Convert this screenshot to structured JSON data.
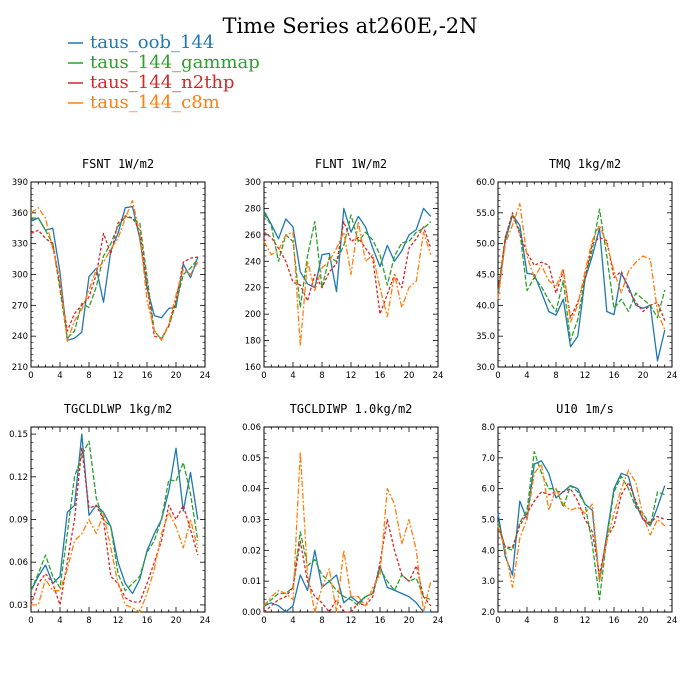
{
  "title": "Time Series at260E,-2N",
  "legend": [
    {
      "name": "taus_oob_144",
      "color": "#1f77b4"
    },
    {
      "name": "taus_144_gammap",
      "color": "#2ca02c"
    },
    {
      "name": "taus_144_n2thp",
      "color": "#d62728"
    },
    {
      "name": "taus_144_c8m",
      "color": "#ff7f0e"
    }
  ],
  "chart_data": [
    {
      "type": "line",
      "title": "FSNT  1W/m2",
      "x": [
        0,
        1,
        2,
        3,
        4,
        5,
        6,
        7,
        8,
        9,
        10,
        11,
        12,
        13,
        14,
        15,
        16,
        17,
        18,
        19,
        20,
        21,
        22,
        23
      ],
      "xticks": [
        0,
        4,
        8,
        12,
        16,
        20,
        24
      ],
      "xlim": [
        0,
        24
      ],
      "ylim": [
        210,
        390
      ],
      "yticks": [
        210,
        240,
        270,
        300,
        330,
        360,
        390
      ],
      "grid": false,
      "series": [
        {
          "name": "taus_oob_144",
          "values": [
            352,
            355,
            343,
            345,
            302,
            236,
            238,
            244,
            298,
            306,
            273,
            323,
            340,
            365,
            366,
            335,
            287,
            260,
            258,
            267,
            268,
            310,
            297,
            317
          ]
        },
        {
          "name": "taus_144_gammap",
          "values": [
            355,
            355,
            343,
            330,
            285,
            238,
            245,
            272,
            268,
            288,
            318,
            330,
            347,
            356,
            355,
            350,
            298,
            245,
            237,
            250,
            272,
            300,
            306,
            315
          ]
        },
        {
          "name": "taus_144_n2thp",
          "values": [
            340,
            343,
            335,
            330,
            290,
            245,
            262,
            270,
            278,
            300,
            340,
            320,
            350,
            357,
            355,
            343,
            290,
            240,
            238,
            250,
            275,
            312,
            316,
            317
          ]
        },
        {
          "name": "taus_144_c8m",
          "values": [
            360,
            365,
            355,
            325,
            295,
            235,
            255,
            266,
            285,
            305,
            312,
            325,
            335,
            355,
            372,
            340,
            275,
            246,
            236,
            252,
            280,
            305,
            300,
            312
          ]
        }
      ]
    },
    {
      "type": "line",
      "title": "FLNT  1W/m2",
      "x": [
        0,
        1,
        2,
        3,
        4,
        5,
        6,
        7,
        8,
        9,
        10,
        11,
        12,
        13,
        14,
        15,
        16,
        17,
        18,
        19,
        20,
        21,
        22,
        23
      ],
      "xticks": [
        0,
        4,
        8,
        12,
        16,
        20,
        24
      ],
      "xlim": [
        0,
        24
      ],
      "ylim": [
        160,
        300
      ],
      "yticks": [
        160,
        180,
        200,
        220,
        240,
        260,
        280,
        300
      ],
      "grid": false,
      "series": [
        {
          "name": "taus_oob_144",
          "values": [
            278,
            268,
            257,
            272,
            266,
            232,
            223,
            220,
            245,
            246,
            217,
            280,
            262,
            274,
            266,
            250,
            236,
            252,
            240,
            248,
            260,
            264,
            280,
            274
          ]
        },
        {
          "name": "taus_144_gammap",
          "values": [
            276,
            267,
            240,
            260,
            255,
            205,
            244,
            270,
            220,
            243,
            240,
            252,
            275,
            255,
            262,
            256,
            245,
            222,
            244,
            254,
            255,
            262,
            265,
            270
          ]
        },
        {
          "name": "taus_144_n2thp",
          "values": [
            262,
            258,
            250,
            240,
            224,
            222,
            210,
            230,
            220,
            232,
            238,
            270,
            255,
            258,
            250,
            242,
            200,
            215,
            230,
            220,
            250,
            257,
            266,
            250
          ]
        },
        {
          "name": "taus_144_c8m",
          "values": [
            255,
            245,
            248,
            260,
            262,
            176,
            240,
            218,
            235,
            240,
            250,
            262,
            230,
            270,
            240,
            245,
            220,
            198,
            230,
            205,
            220,
            225,
            262,
            245
          ]
        }
      ]
    },
    {
      "type": "line",
      "title": "TMQ  1kg/m2",
      "x": [
        0,
        1,
        2,
        3,
        4,
        5,
        6,
        7,
        8,
        9,
        10,
        11,
        12,
        13,
        14,
        15,
        16,
        17,
        18,
        19,
        20,
        21,
        22,
        23
      ],
      "xticks": [
        0,
        4,
        8,
        12,
        16,
        20,
        24
      ],
      "xlim": [
        0,
        24
      ],
      "ylim": [
        30.0,
        60.0
      ],
      "yticks": [
        30.0,
        35.0,
        40.0,
        45.0,
        50.0,
        55.0,
        60.0
      ],
      "grid": false,
      "series": [
        {
          "name": "taus_oob_144",
          "values": [
            41.5,
            50.5,
            54.6,
            53.0,
            45.2,
            45.0,
            42.1,
            39.0,
            38.4,
            41.0,
            33.3,
            35.0,
            44.2,
            48.0,
            52.5,
            39.0,
            38.5,
            45.2,
            43.0,
            40.0,
            39.5,
            40.0,
            31.0,
            36.0
          ]
        },
        {
          "name": "taus_144_gammap",
          "values": [
            42.1,
            51.0,
            54.6,
            52.0,
            42.4,
            44.5,
            43.0,
            40.8,
            39.0,
            44.0,
            34.3,
            37.7,
            44.5,
            49.0,
            55.6,
            48.0,
            39.5,
            41.0,
            39.0,
            42.0,
            41.0,
            40.0,
            38.0,
            42.5
          ]
        },
        {
          "name": "taus_144_n2thp",
          "values": [
            42.0,
            51.0,
            55.0,
            51.5,
            48.5,
            46.5,
            47.0,
            46.5,
            42.0,
            45.5,
            38.0,
            40.5,
            44.5,
            50.0,
            51.0,
            50.5,
            44.5,
            45.5,
            42.5,
            40.5,
            39.0,
            40.0,
            40.5,
            37.5
          ]
        },
        {
          "name": "taus_144_c8m",
          "values": [
            41.0,
            50.0,
            53.0,
            56.5,
            48.0,
            44.5,
            46.5,
            44.0,
            43.0,
            46.0,
            37.3,
            40.0,
            45.5,
            50.5,
            53.0,
            50.0,
            45.5,
            42.0,
            45.5,
            47.0,
            48.0,
            47.5,
            39.0,
            36.0
          ]
        }
      ]
    },
    {
      "type": "line",
      "title": "TGCLDLWP  1kg/m2",
      "x": [
        0,
        1,
        2,
        3,
        4,
        5,
        6,
        7,
        8,
        9,
        10,
        11,
        12,
        13,
        14,
        15,
        16,
        17,
        18,
        19,
        20,
        21,
        22,
        23
      ],
      "xticks": [
        0,
        4,
        8,
        12,
        16,
        20,
        24
      ],
      "xlim": [
        0,
        24
      ],
      "ylim": [
        0.025,
        0.155
      ],
      "yticks": [
        0.03,
        0.06,
        0.09,
        0.12,
        0.15
      ],
      "grid": false,
      "series": [
        {
          "name": "taus_oob_144",
          "values": [
            0.04,
            0.05,
            0.058,
            0.045,
            0.05,
            0.095,
            0.1,
            0.15,
            0.093,
            0.1,
            0.095,
            0.085,
            0.06,
            0.045,
            0.038,
            0.048,
            0.068,
            0.08,
            0.09,
            0.11,
            0.14,
            0.096,
            0.123,
            0.09
          ]
        },
        {
          "name": "taus_144_gammap",
          "values": [
            0.04,
            0.052,
            0.065,
            0.05,
            0.042,
            0.08,
            0.12,
            0.135,
            0.145,
            0.105,
            0.09,
            0.085,
            0.052,
            0.04,
            0.045,
            0.05,
            0.067,
            0.075,
            0.09,
            0.118,
            0.117,
            0.13,
            0.108,
            0.075
          ]
        },
        {
          "name": "taus_144_n2thp",
          "values": [
            0.03,
            0.045,
            0.052,
            0.045,
            0.03,
            0.06,
            0.09,
            0.14,
            0.098,
            0.1,
            0.09,
            0.05,
            0.045,
            0.035,
            0.032,
            0.032,
            0.045,
            0.06,
            0.075,
            0.1,
            0.09,
            0.1,
            0.083,
            0.065
          ]
        },
        {
          "name": "taus_144_c8m",
          "values": [
            0.03,
            0.03,
            0.048,
            0.04,
            0.04,
            0.055,
            0.075,
            0.08,
            0.09,
            0.08,
            0.094,
            0.07,
            0.045,
            0.03,
            0.028,
            0.025,
            0.038,
            0.055,
            0.08,
            0.095,
            0.085,
            0.07,
            0.09,
            0.07
          ]
        }
      ]
    },
    {
      "type": "line",
      "title": "TGCLDIWP  1.0kg/m2",
      "x": [
        0,
        1,
        2,
        3,
        4,
        5,
        6,
        7,
        8,
        9,
        10,
        11,
        12,
        13,
        14,
        15,
        16,
        17,
        18,
        19,
        20,
        21,
        22,
        23
      ],
      "xticks": [
        0,
        4,
        8,
        12,
        16,
        20,
        24
      ],
      "xlim": [
        0,
        24
      ],
      "ylim": [
        0.0,
        0.06
      ],
      "yticks": [
        0.0,
        0.01,
        0.02,
        0.03,
        0.04,
        0.05,
        0.06
      ],
      "grid": false,
      "series": [
        {
          "name": "taus_oob_144",
          "values": [
            0.002,
            0.003,
            0.002,
            0.0,
            0.002,
            0.012,
            0.007,
            0.02,
            0.008,
            0.01,
            0.012,
            0.003,
            0.005,
            0.003,
            0.005,
            0.006,
            0.015,
            0.008,
            0.007,
            0.006,
            0.005,
            0.003,
            0.0,
            0.0
          ]
        },
        {
          "name": "taus_144_gammap",
          "values": [
            0.002,
            0.004,
            0.006,
            0.006,
            0.008,
            0.026,
            0.015,
            0.017,
            0.012,
            0.01,
            0.007,
            0.005,
            0.004,
            0.002,
            0.005,
            0.006,
            0.014,
            0.01,
            0.007,
            0.012,
            0.01,
            0.011,
            0.005,
            0.004
          ]
        },
        {
          "name": "taus_144_n2thp",
          "values": [
            0.0,
            0.002,
            0.004,
            0.005,
            0.008,
            0.023,
            0.01,
            0.005,
            0.003,
            0.0,
            0.004,
            0.0,
            0.0,
            0.003,
            0.002,
            0.005,
            0.016,
            0.03,
            0.02,
            0.012,
            0.01,
            0.015,
            0.005,
            0.002
          ]
        },
        {
          "name": "taus_144_c8m",
          "values": [
            0.002,
            0.005,
            0.007,
            0.006,
            0.004,
            0.052,
            0.012,
            0.0,
            0.008,
            0.014,
            0.0,
            0.02,
            0.005,
            0.005,
            0.002,
            0.008,
            0.012,
            0.04,
            0.035,
            0.022,
            0.03,
            0.02,
            0.0,
            0.01
          ]
        }
      ]
    },
    {
      "type": "line",
      "title": "U10  1m/s",
      "x": [
        0,
        1,
        2,
        3,
        4,
        5,
        6,
        7,
        8,
        9,
        10,
        11,
        12,
        13,
        14,
        15,
        16,
        17,
        18,
        19,
        20,
        21,
        22,
        23
      ],
      "xticks": [
        0,
        4,
        8,
        12,
        16,
        20,
        24
      ],
      "xlim": [
        0,
        24
      ],
      "ylim": [
        2.0,
        8.0
      ],
      "yticks": [
        2.0,
        3.0,
        4.0,
        5.0,
        6.0,
        7.0,
        8.0
      ],
      "grid": false,
      "series": [
        {
          "name": "taus_oob_144",
          "values": [
            5.2,
            3.8,
            3.2,
            5.6,
            5.0,
            6.8,
            6.9,
            6.5,
            5.7,
            5.9,
            6.1,
            6.0,
            5.5,
            5.3,
            3.0,
            4.5,
            6.0,
            6.5,
            6.4,
            5.5,
            5.0,
            4.8,
            5.4,
            6.1
          ]
        },
        {
          "name": "taus_144_gammap",
          "values": [
            4.9,
            4.1,
            4.0,
            4.9,
            5.3,
            7.2,
            6.5,
            6.0,
            6.0,
            5.4,
            6.1,
            5.9,
            5.5,
            4.2,
            2.4,
            4.4,
            5.9,
            6.4,
            6.0,
            5.4,
            5.2,
            4.8,
            5.9,
            5.8
          ]
        },
        {
          "name": "taus_144_n2thp",
          "values": [
            4.8,
            4.1,
            4.1,
            4.8,
            5.2,
            5.6,
            5.9,
            5.8,
            5.9,
            5.9,
            6.0,
            5.6,
            5.0,
            4.6,
            3.2,
            4.4,
            4.8,
            5.8,
            6.2,
            5.6,
            5.0,
            4.9,
            5.1,
            5.0
          ]
        },
        {
          "name": "taus_144_c8m",
          "values": [
            4.8,
            4.0,
            2.8,
            4.4,
            5.0,
            6.5,
            6.8,
            5.3,
            6.0,
            5.5,
            5.3,
            5.4,
            5.2,
            5.5,
            3.0,
            4.3,
            5.2,
            6.0,
            6.6,
            6.2,
            5.1,
            4.5,
            5.0,
            4.8
          ]
        }
      ]
    }
  ]
}
